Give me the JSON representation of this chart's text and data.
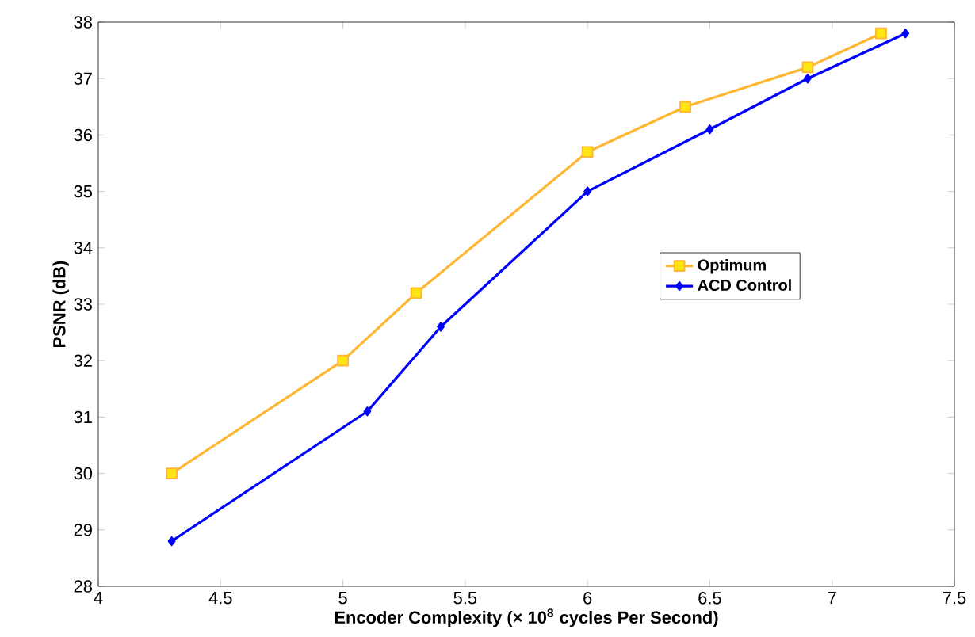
{
  "chart_data": {
    "type": "line",
    "xlabel": "Encoder Complexity (× 10$^{8}$ cycles Per Second)",
    "ylabel": "PSNR (dB)",
    "xlim": [
      4,
      7.5
    ],
    "xticks": [
      4,
      4.5,
      5,
      5.5,
      6,
      6.5,
      7,
      7.5
    ],
    "ylim": [
      28,
      38
    ],
    "yticks": [
      28,
      29,
      30,
      31,
      32,
      33,
      34,
      35,
      36,
      37,
      38
    ],
    "legend": "right",
    "line_style": "solid",
    "series": [
      {
        "name": "Optimum",
        "color": "#ffb733",
        "marker": "square",
        "x": [
          4.3,
          5,
          5.3,
          6,
          6.4,
          6.9,
          7.2
        ],
        "values": [
          30,
          32,
          33.2,
          35.7,
          36.5,
          37.2,
          37.8
        ]
      },
      {
        "name": "ACD Control",
        "color": "#0000ff",
        "marker": "diamond",
        "x": [
          4.3,
          5.1,
          5.4,
          6,
          6.5,
          6.9,
          7.3
        ],
        "values": [
          28.8,
          31.1,
          32.6,
          35,
          36.1,
          37,
          37.8
        ]
      }
    ]
  }
}
